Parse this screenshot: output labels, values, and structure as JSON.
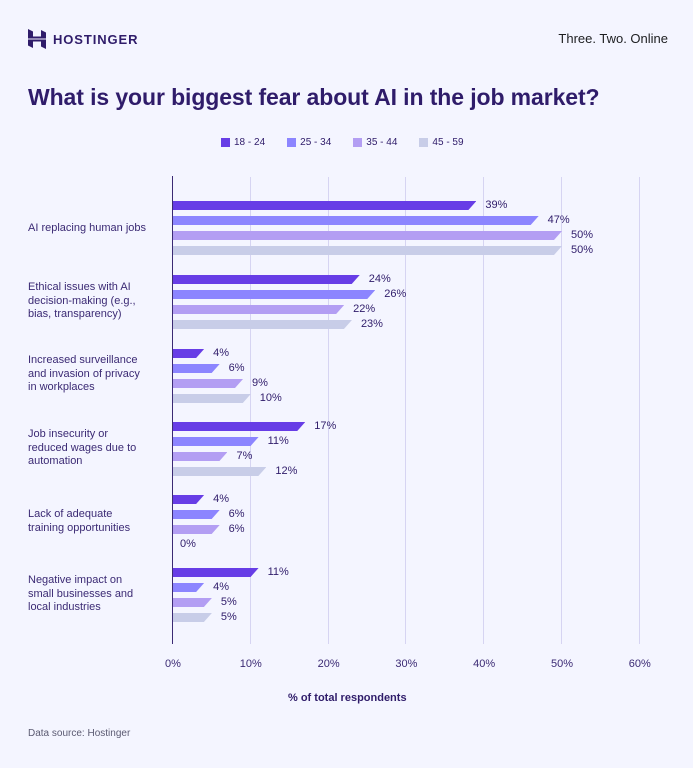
{
  "header": {
    "brand": "HOSTINGER",
    "tagline": "Three. Two. Online"
  },
  "title": "What is your biggest fear about AI in the job market?",
  "legend": [
    {
      "label": "18 - 24",
      "color": "#673de6"
    },
    {
      "label": "25 - 34",
      "color": "#8c85ff"
    },
    {
      "label": "35 - 44",
      "color": "#b39ef3"
    },
    {
      "label": "45 - 59",
      "color": "#c8cde8"
    }
  ],
  "x_ticks": [
    "0%",
    "10%",
    "20%",
    "30%",
    "40%",
    "50%",
    "60%"
  ],
  "xlabel": "% of total respondents",
  "source": "Data source: Hostinger",
  "chart_data": {
    "type": "bar",
    "orientation": "horizontal",
    "title": "What is your biggest fear about AI in the job market?",
    "xlabel": "% of total respondents",
    "ylabel": "",
    "xlim": [
      0,
      60
    ],
    "x_ticks": [
      0,
      10,
      20,
      30,
      40,
      50,
      60
    ],
    "grid": true,
    "legend_position": "top",
    "categories": [
      "AI replacing human jobs",
      "Ethical issues with AI decision-making (e.g., bias, transparency)",
      "Increased surveillance and invasion of privacy in workplaces",
      "Job insecurity or reduced wages due to automation",
      "Lack of adequate training opportunities",
      "Negative impact on small businesses and local industries"
    ],
    "series": [
      {
        "name": "18 - 24",
        "color": "#673de6",
        "values": [
          39,
          24,
          4,
          17,
          4,
          11
        ]
      },
      {
        "name": "25 - 34",
        "color": "#8c85ff",
        "values": [
          47,
          26,
          6,
          11,
          6,
          4
        ]
      },
      {
        "name": "35 - 44",
        "color": "#b39ef3",
        "values": [
          50,
          22,
          9,
          7,
          6,
          5
        ]
      },
      {
        "name": "45 - 59",
        "color": "#c8cde8",
        "values": [
          50,
          23,
          10,
          12,
          0,
          5
        ]
      }
    ],
    "labels": [
      [
        "39%",
        "47%",
        "50%",
        "50%"
      ],
      [
        "24%",
        "26%",
        "22%",
        "23%"
      ],
      [
        "4%",
        "6%",
        "9%",
        "10%"
      ],
      [
        "17%",
        "11%",
        "7%",
        "12%"
      ],
      [
        "4%",
        "6%",
        "6%",
        "0%"
      ],
      [
        "11%",
        "4%",
        "5%",
        "5%"
      ]
    ],
    "category_labels": [
      "AI replacing human jobs",
      "Ethical issues with AI\ndecision-making (e.g.,\nbias, transparency)",
      "Increased surveillance\nand invasion of privacy\nin workplaces",
      "Job insecurity or\nreduced wages due to\nautomation",
      "Lack of adequate\ntraining opportunities",
      "Negative impact on\nsmall businesses and\nlocal industries"
    ]
  }
}
